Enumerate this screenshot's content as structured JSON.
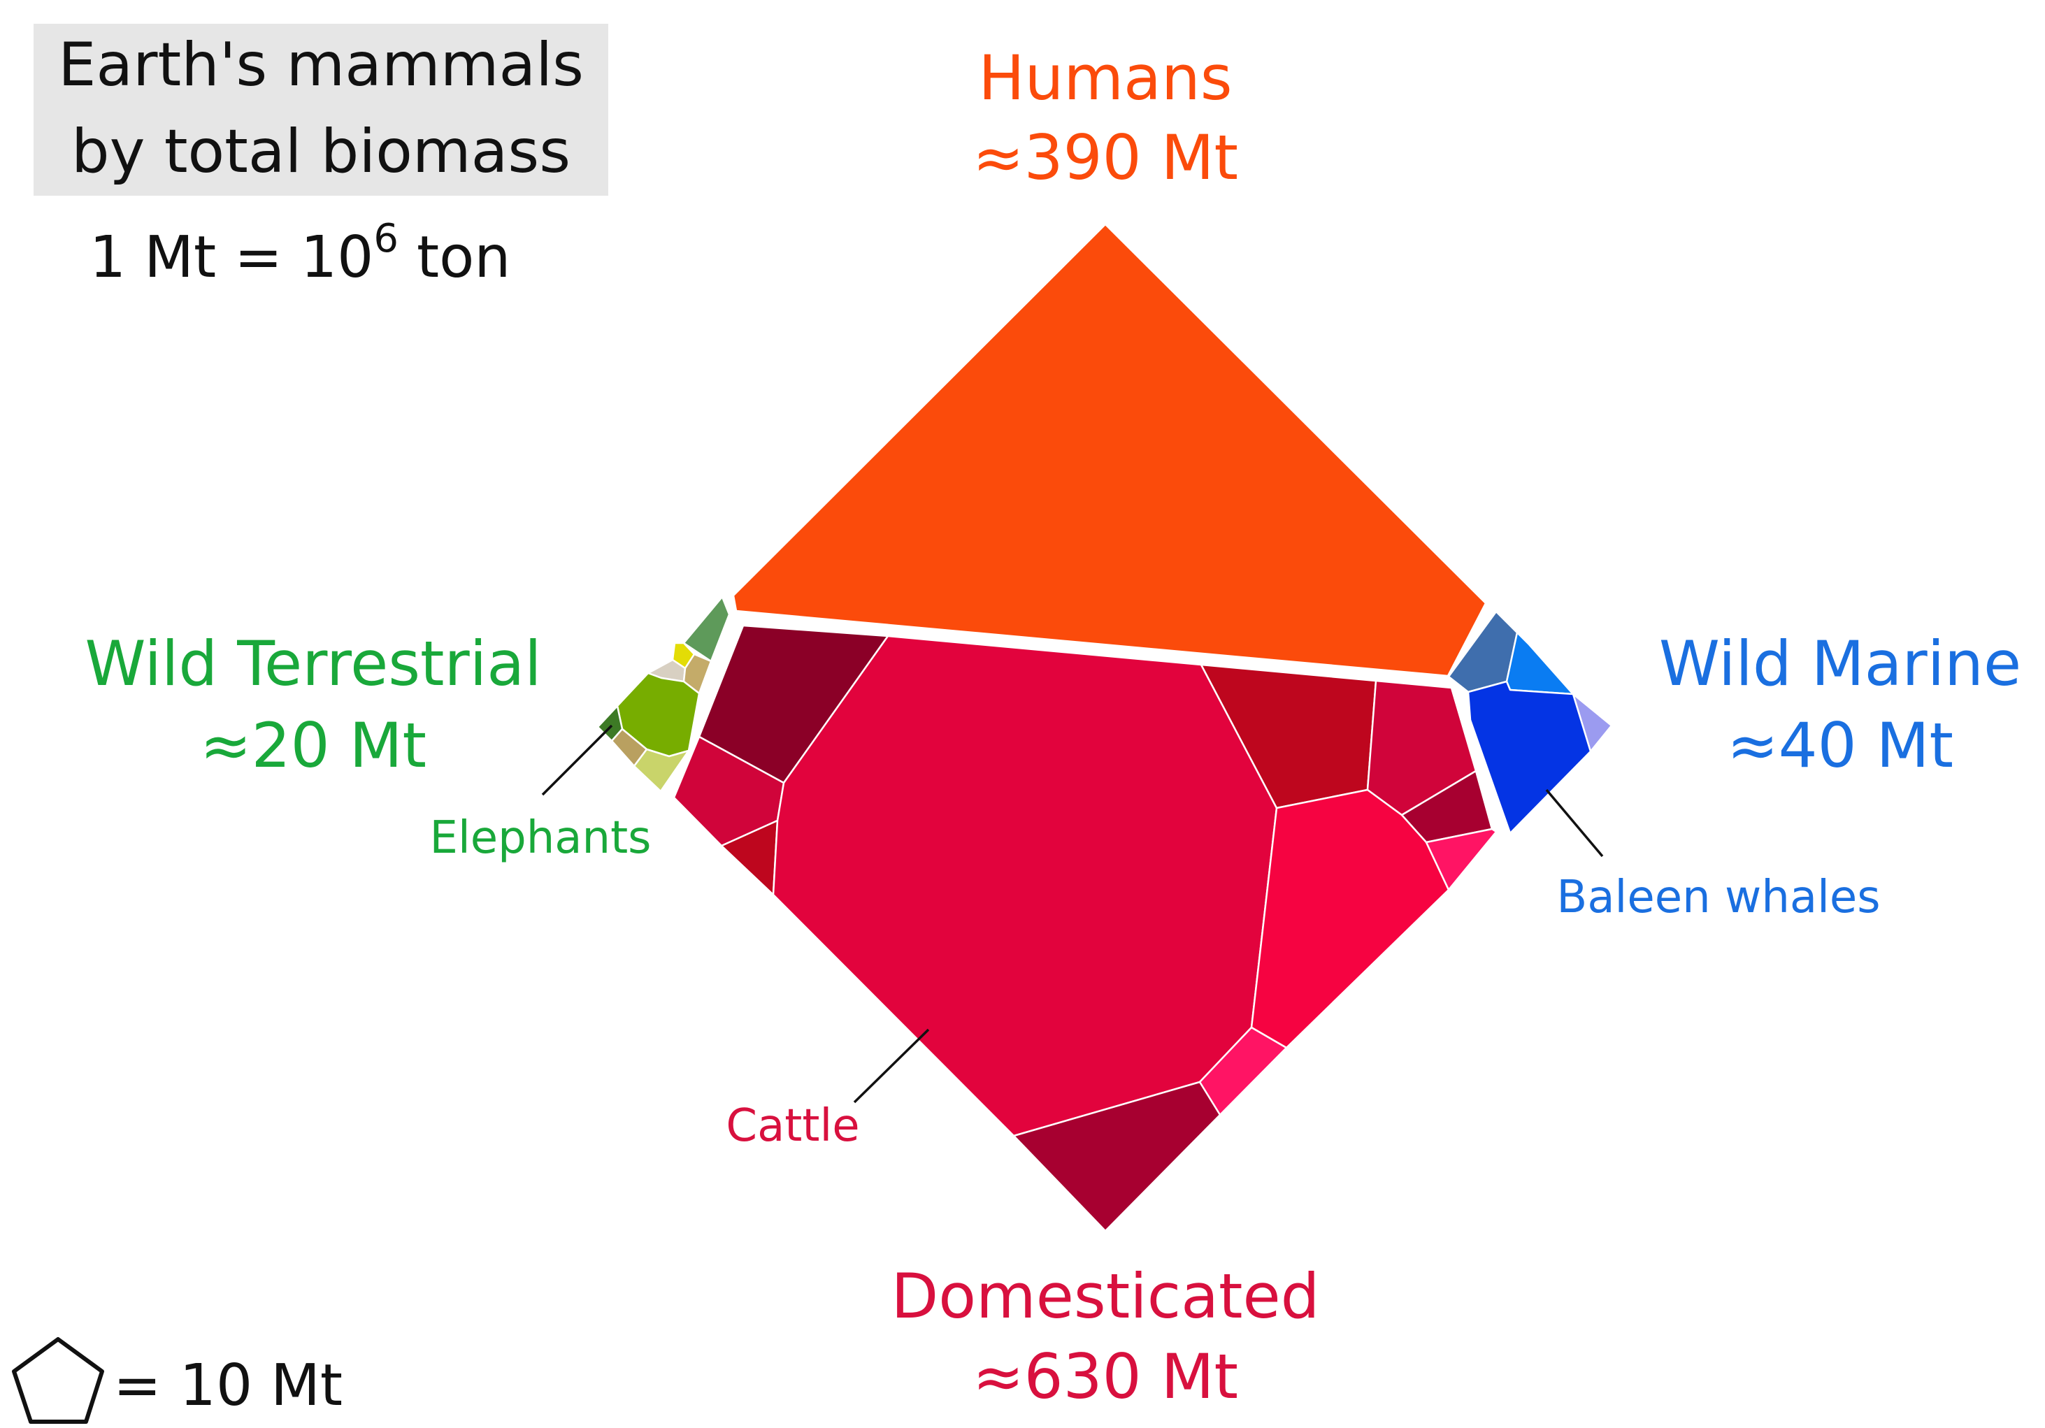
{
  "title": {
    "line1": "Earth's mammals",
    "line2": "by total biomass"
  },
  "unit_note": {
    "prefix": "1 Mt = 10",
    "exponent": "6",
    "suffix": " ton"
  },
  "legend": {
    "label": "= 10 Mt",
    "icon": "pentagon-icon"
  },
  "groups": {
    "humans": {
      "name": "Humans",
      "amount": "≈390 Mt",
      "color": "#fb4b0b"
    },
    "domesticated": {
      "name": "Domesticated",
      "amount": "≈630 Mt",
      "color": "#d8103e"
    },
    "wild_terrestrial": {
      "name": "Wild Terrestrial",
      "amount": "≈20 Mt",
      "color": "#19a83a"
    },
    "wild_marine": {
      "name": "Wild Marine",
      "amount": "≈40 Mt",
      "color": "#1a6fe0"
    }
  },
  "callouts": {
    "elephants": {
      "label": "Elephants",
      "color": "#19a83a"
    },
    "baleen_whales": {
      "label": "Baleen whales",
      "color": "#1a6fe0"
    },
    "cattle": {
      "label": "Cattle",
      "color": "#d8103e"
    }
  },
  "colors": {
    "humans_fill": "#fb4b0b",
    "cattle_fill": "#e2033d",
    "domesticated_dark": "#8b0027",
    "domesticated_crimson": "#d0043a",
    "domesticated_red": "#be061e",
    "domesticated_pink": "#f60341",
    "domesticated_hotpink": "#ff1464",
    "domesticated_wine": "#a70030",
    "elephants_fill": "#77ad00",
    "wild_terr_dark_green": "#3d7a25",
    "wild_terr_sage": "#5e9a5a",
    "wild_terr_tan": "#c4ab69",
    "wild_terr_beige": "#d8d0c2",
    "wild_terr_yellow": "#e3dc06",
    "wild_terr_khaki": "#b9a060",
    "wild_terr_lime": "#c9d46a",
    "baleen_whales_fill": "#0434e4",
    "marine_steel": "#3f6ead",
    "marine_azure": "#0a7cf2",
    "marine_lavender": "#9b9bf0",
    "marine_mid": "#2f5fb5"
  }
}
